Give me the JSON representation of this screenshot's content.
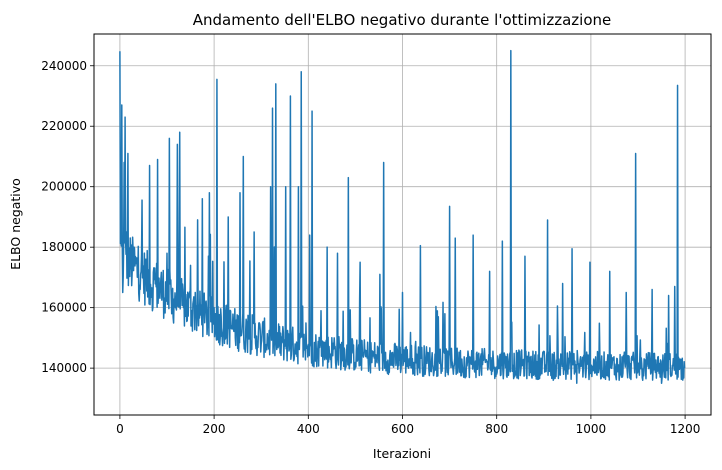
{
  "chart_data": {
    "type": "line",
    "title": "Andamento dell'ELBO negativo durante l'ottimizzazione",
    "xlabel": "Iterazioni",
    "ylabel": "ELBO negativo",
    "xlim": [
      -55,
      1255
    ],
    "ylim": [
      124500,
      250500
    ],
    "grid": true,
    "line_color": "#1f77b4",
    "x_ticks": [
      0,
      200,
      400,
      600,
      800,
      1000,
      1200
    ],
    "x_tick_labels": [
      "0",
      "200",
      "400",
      "600",
      "800",
      "1000",
      "1200"
    ],
    "y_ticks": [
      140000,
      160000,
      180000,
      200000,
      220000,
      240000
    ],
    "y_tick_labels": [
      "140000",
      "160000",
      "180000",
      "200000",
      "220000",
      "240000"
    ],
    "series": [
      {
        "x_start": 0,
        "x_end": 1199,
        "description_of_trend": "",
        "key_points": [
          [
            0,
            244800
          ],
          [
            2,
            190000
          ],
          [
            4,
            227000
          ],
          [
            6,
            165000
          ],
          [
            9,
            208000
          ],
          [
            11,
            223000
          ],
          [
            14,
            185000
          ],
          [
            17,
            211000
          ],
          [
            20,
            172000
          ],
          [
            30,
            180000
          ],
          [
            45,
            172000
          ],
          [
            55,
            176000
          ],
          [
            63,
            207000
          ],
          [
            70,
            160000
          ],
          [
            80,
            209000
          ],
          [
            90,
            165000
          ],
          [
            100,
            178000
          ],
          [
            105,
            216000
          ],
          [
            110,
            158000
          ],
          [
            122,
            214000
          ],
          [
            127,
            218000
          ],
          [
            135,
            160000
          ],
          [
            150,
            174000
          ],
          [
            160,
            165000
          ],
          [
            175,
            196000
          ],
          [
            180,
            155000
          ],
          [
            190,
            198000
          ],
          [
            200,
            160000
          ],
          [
            206,
            235500
          ],
          [
            215,
            157000
          ],
          [
            230,
            190000
          ],
          [
            245,
            150000
          ],
          [
            255,
            198000
          ],
          [
            262,
            210000
          ],
          [
            270,
            150000
          ],
          [
            285,
            185000
          ],
          [
            300,
            148000
          ],
          [
            320,
            200000
          ],
          [
            324,
            226000
          ],
          [
            331,
            234000
          ],
          [
            340,
            145000
          ],
          [
            352,
            200000
          ],
          [
            362,
            230000
          ],
          [
            372,
            148000
          ],
          [
            379,
            200000
          ],
          [
            385,
            238000
          ],
          [
            392,
            146000
          ],
          [
            403,
            184000
          ],
          [
            408,
            225000
          ],
          [
            420,
            146000
          ],
          [
            440,
            180000
          ],
          [
            455,
            150000
          ],
          [
            462,
            178000
          ],
          [
            470,
            142000
          ],
          [
            485,
            203000
          ],
          [
            495,
            145000
          ],
          [
            510,
            175000
          ],
          [
            530,
            142000
          ],
          [
            552,
            171000
          ],
          [
            560,
            208000
          ],
          [
            575,
            141000
          ],
          [
            600,
            165000
          ],
          [
            620,
            140000
          ],
          [
            638,
            180500
          ],
          [
            660,
            139000
          ],
          [
            690,
            158000
          ],
          [
            700,
            193500
          ],
          [
            712,
            183000
          ],
          [
            730,
            137000
          ],
          [
            750,
            184000
          ],
          [
            765,
            142000
          ],
          [
            785,
            172000
          ],
          [
            800,
            138000
          ],
          [
            812,
            182000
          ],
          [
            830,
            245000
          ],
          [
            840,
            139000
          ],
          [
            860,
            177000
          ],
          [
            880,
            138000
          ],
          [
            908,
            189000
          ],
          [
            920,
            136000
          ],
          [
            940,
            168000
          ],
          [
            960,
            179500
          ],
          [
            970,
            135000
          ],
          [
            998,
            175000
          ],
          [
            1020,
            140000
          ],
          [
            1040,
            172000
          ],
          [
            1060,
            136000
          ],
          [
            1075,
            165000
          ],
          [
            1095,
            211000
          ],
          [
            1110,
            136000
          ],
          [
            1130,
            166000
          ],
          [
            1150,
            135000
          ],
          [
            1165,
            164000
          ],
          [
            1178,
            167000
          ],
          [
            1184,
            233500
          ],
          [
            1190,
            140000
          ],
          [
            1199,
            140000
          ]
        ]
      }
    ]
  }
}
